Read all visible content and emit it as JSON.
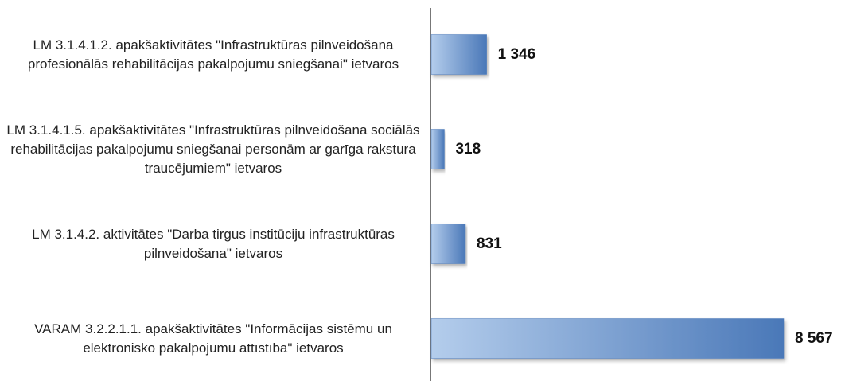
{
  "chart_data": {
    "type": "bar",
    "orientation": "horizontal",
    "categories": [
      "LM 3.1.4.1.2. apakšaktivitātes \"Infrastruktūras pilnveidošana profesionālās rehabilitācijas pakalpojumu sniegšanai\" ietvaros",
      "LM 3.1.4.1.5. apakšaktivitātes \"Infrastruktūras pilnveidošana sociālās rehabilitācijas pakalpojumu sniegšanai personām ar garīga rakstura traucējumiem\" ietvaros",
      "LM 3.1.4.2. aktivitātes \"Darba tirgus institūciju infrastruktūras pilnveidošana\" ietvaros",
      "VARAM 3.2.2.1.1. apakšaktivitātes \"Informācijas sistēmu un elektronisko pakalpojumu attīstība\" ietvaros"
    ],
    "values": [
      1346,
      318,
      831,
      8567
    ],
    "value_labels": [
      "1 346",
      "318",
      "831",
      "8 567"
    ],
    "color": "#4a78b8"
  }
}
